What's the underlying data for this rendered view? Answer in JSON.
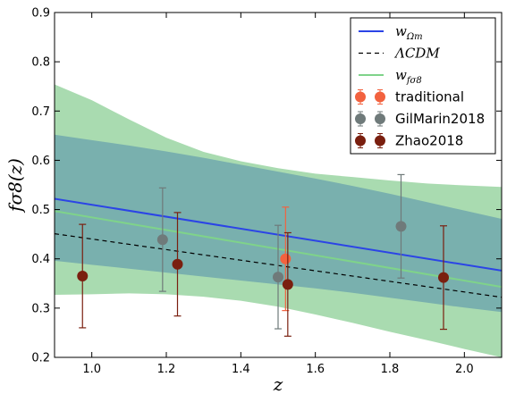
{
  "chart_data": {
    "type": "line",
    "xlabel": "z",
    "ylabel": "fσ8(z)",
    "xlim": [
      0.9,
      2.1
    ],
    "ylim": [
      0.2,
      0.9
    ],
    "xticks": [
      "1.0",
      "1.2",
      "1.4",
      "1.6",
      "1.8",
      "2.0"
    ],
    "yticks": [
      "0.2",
      "0.3",
      "0.4",
      "0.5",
      "0.6",
      "0.7",
      "0.8",
      "0.9"
    ],
    "legend_position": "top-right",
    "bands": [
      {
        "series": "wfσ8",
        "color": "#a9dbb0",
        "x": [
          0.9,
          1.0,
          1.1,
          1.2,
          1.3,
          1.4,
          1.5,
          1.6,
          1.7,
          1.8,
          1.9,
          2.0,
          2.1
        ],
        "upper": [
          0.754,
          0.722,
          0.683,
          0.646,
          0.617,
          0.598,
          0.584,
          0.573,
          0.566,
          0.559,
          0.553,
          0.549,
          0.546
        ],
        "lower": [
          0.327,
          0.328,
          0.33,
          0.328,
          0.323,
          0.315,
          0.303,
          0.287,
          0.27,
          0.252,
          0.235,
          0.217,
          0.2
        ]
      },
      {
        "series": "wΩm",
        "color": "#79b0ae",
        "x": [
          0.9,
          1.0,
          1.1,
          1.2,
          1.3,
          1.4,
          1.5,
          1.6,
          1.7,
          1.8,
          1.9,
          2.0,
          2.1
        ],
        "upper": [
          0.652,
          0.641,
          0.63,
          0.618,
          0.605,
          0.591,
          0.577,
          0.563,
          0.548,
          0.532,
          0.515,
          0.498,
          0.481
        ],
        "lower": [
          0.396,
          0.388,
          0.38,
          0.372,
          0.364,
          0.356,
          0.348,
          0.34,
          0.331,
          0.321,
          0.311,
          0.301,
          0.292
        ]
      }
    ],
    "lines": [
      {
        "name": "wΩm",
        "color": "#2b44e6",
        "style": "solid",
        "x": [
          0.9,
          2.1
        ],
        "y": [
          0.522,
          0.376
        ]
      },
      {
        "name": "ΛCDM",
        "color": "#000000",
        "style": "dashed",
        "x": [
          0.9,
          2.1
        ],
        "y": [
          0.451,
          0.322
        ]
      },
      {
        "name": "wfσ8",
        "color": "#7fd38a",
        "style": "solid",
        "x": [
          0.9,
          2.1
        ],
        "y": [
          0.497,
          0.343
        ]
      }
    ],
    "points": [
      {
        "name": "traditional",
        "color": "#f2623f",
        "x": [
          1.52
        ],
        "y": [
          0.4
        ],
        "err": [
          0.105
        ]
      },
      {
        "name": "GilMarin2018",
        "color": "#6f7a7a",
        "x": [
          1.19,
          1.5,
          1.83
        ],
        "y": [
          0.439,
          0.363,
          0.466
        ],
        "err": [
          0.105,
          0.105,
          0.105
        ]
      },
      {
        "name": "Zhao2018",
        "color": "#7a1f0f",
        "x": [
          0.975,
          1.23,
          1.526,
          1.944
        ],
        "y": [
          0.365,
          0.389,
          0.348,
          0.362
        ],
        "err": [
          0.105,
          0.105,
          0.105,
          0.105
        ]
      }
    ],
    "legend": [
      {
        "label_main": "w",
        "label_sub": "Ωm",
        "kind": "line",
        "series": "wΩm"
      },
      {
        "label_main": "ΛCDM",
        "label_sub": "",
        "kind": "dashed",
        "series": "ΛCDM"
      },
      {
        "label_main": "w",
        "label_sub": "fσ8",
        "kind": "line",
        "series": "wfσ8"
      },
      {
        "label_main": "traditional",
        "label_sub": "",
        "kind": "marker",
        "series": "traditional"
      },
      {
        "label_main": "GilMarin2018",
        "label_sub": "",
        "kind": "marker",
        "series": "GilMarin2018"
      },
      {
        "label_main": "Zhao2018",
        "label_sub": "",
        "kind": "marker",
        "series": "Zhao2018"
      }
    ]
  }
}
